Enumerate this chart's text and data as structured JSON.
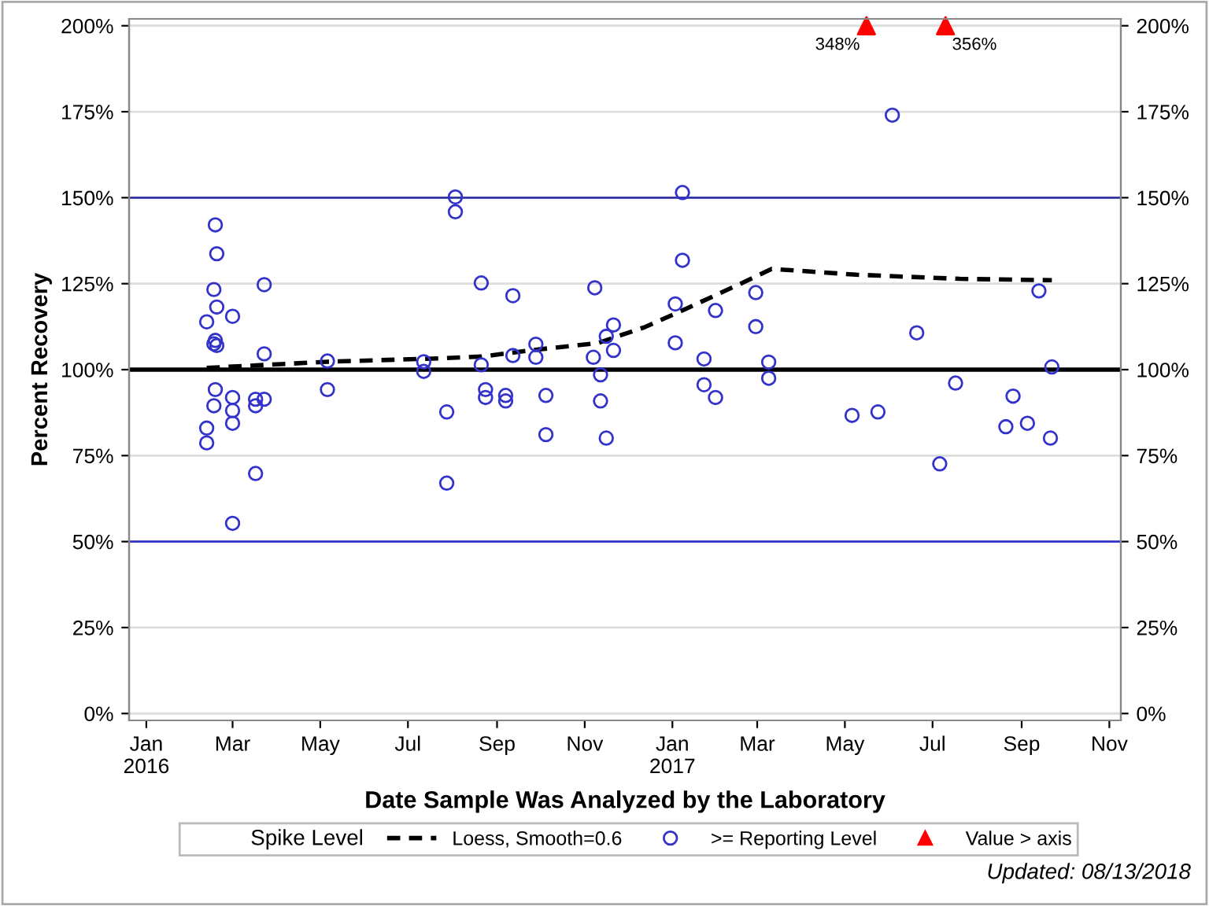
{
  "chart_data": {
    "type": "scatter",
    "xlabel": "Date Sample Was Analyzed by the Laboratory",
    "ylabel": "Percent Recovery",
    "legend_title": "Spike Level",
    "legend": "bottom",
    "grid": "y",
    "xlim": [
      "2015-12-20",
      "2017-11-09"
    ],
    "xticks": [
      {
        "value": "2016-01-01",
        "label": "Jan\n2016"
      },
      {
        "value": "2016-03-01",
        "label": "Mar"
      },
      {
        "value": "2016-05-01",
        "label": "May"
      },
      {
        "value": "2016-07-01",
        "label": "Jul"
      },
      {
        "value": "2016-09-01",
        "label": "Sep"
      },
      {
        "value": "2016-11-01",
        "label": "Nov"
      },
      {
        "value": "2017-01-01",
        "label": "Jan\n2017"
      },
      {
        "value": "2017-03-01",
        "label": "Mar"
      },
      {
        "value": "2017-05-01",
        "label": "May"
      },
      {
        "value": "2017-07-01",
        "label": "Jul"
      },
      {
        "value": "2017-09-01",
        "label": "Sep"
      },
      {
        "value": "2017-11-01",
        "label": "Nov"
      }
    ],
    "ylim": [
      -2,
      202
    ],
    "yticks": [
      {
        "value": 0,
        "label": "0%"
      },
      {
        "value": 25,
        "label": "25%"
      },
      {
        "value": 50,
        "label": "50%"
      },
      {
        "value": 75,
        "label": "75%"
      },
      {
        "value": 100,
        "label": "100%"
      },
      {
        "value": 125,
        "label": "125%"
      },
      {
        "value": 150,
        "label": "150%"
      },
      {
        "value": 175,
        "label": "175%"
      },
      {
        "value": 200,
        "label": "200%"
      }
    ],
    "y2lim": [
      -2,
      202
    ],
    "y2ticks": [
      {
        "value": 0,
        "label": "0%"
      },
      {
        "value": 25,
        "label": "25%"
      },
      {
        "value": 50,
        "label": "50%"
      },
      {
        "value": 75,
        "label": "75%"
      },
      {
        "value": 100,
        "label": "100%"
      },
      {
        "value": 125,
        "label": "125%"
      },
      {
        "value": 150,
        "label": "150%"
      },
      {
        "value": 175,
        "label": "175%"
      },
      {
        "value": 200,
        "label": "200%"
      }
    ],
    "ref_lines": [
      {
        "axis": "y",
        "value": 150,
        "color": "#3333aa",
        "line_style": "solid"
      },
      {
        "axis": "y",
        "value": 100,
        "color": "#000000",
        "line_style": "solid"
      },
      {
        "axis": "y",
        "value": 50,
        "color": "#3333cc",
        "line_style": "solid"
      }
    ],
    "series": [
      {
        "name": "Loess, Smooth=0.6",
        "type": "line",
        "color": "#000000",
        "marker": "none",
        "line_style": "dashed",
        "x": [
          "2016-02-12",
          "2016-05-06",
          "2016-07-24",
          "2016-08-21",
          "2016-09-28",
          "2016-11-10",
          "2016-12-13",
          "2017-01-11",
          "2017-02-17",
          "2017-03-11",
          "2017-05-09",
          "2017-07-20",
          "2017-09-22"
        ],
        "values": [
          100.5,
          102.3,
          103.3,
          103.8,
          105.8,
          107.7,
          112.4,
          117.8,
          124.9,
          129.3,
          127.6,
          126.4,
          126
        ]
      },
      {
        "name": ">= Reporting Level",
        "color": "#3333cc",
        "marker": "circle",
        "x": [
          "2016-02-18",
          "2016-02-19",
          "2016-02-17",
          "2016-02-19",
          "2016-02-12",
          "2016-03-01",
          "2016-03-23",
          "2016-02-18",
          "2016-02-17",
          "2016-02-19",
          "2016-03-23",
          "2016-05-06",
          "2016-07-12",
          "2016-07-12",
          "2016-02-18",
          "2016-02-17",
          "2016-03-01",
          "2016-03-01",
          "2016-03-01",
          "2016-02-12",
          "2016-02-12",
          "2016-03-17",
          "2016-03-17",
          "2016-03-23",
          "2016-05-06",
          "2016-03-17",
          "2016-03-01",
          "2016-08-03",
          "2016-08-03",
          "2016-07-28",
          "2016-07-28",
          "2016-08-21",
          "2016-08-21",
          "2016-08-24",
          "2016-08-24",
          "2016-09-07",
          "2016-09-07",
          "2016-09-12",
          "2016-09-12",
          "2016-09-28",
          "2016-09-28",
          "2016-10-05",
          "2016-10-05",
          "2016-11-08",
          "2016-11-07",
          "2016-11-12",
          "2016-11-12",
          "2016-11-16",
          "2016-11-21",
          "2016-11-21",
          "2016-11-16",
          "2017-01-08",
          "2017-01-08",
          "2017-01-03",
          "2017-01-03",
          "2017-01-23",
          "2017-01-23",
          "2017-01-31",
          "2017-01-31",
          "2017-02-28",
          "2017-02-28",
          "2017-03-09",
          "2017-03-09",
          "2017-05-06",
          "2017-05-24",
          "2017-06-03",
          "2017-06-20",
          "2017-07-06",
          "2017-07-17",
          "2017-08-21",
          "2017-08-26",
          "2017-09-05",
          "2017-09-13",
          "2017-09-22",
          "2017-09-21"
        ],
        "values": [
          142.1,
          133.7,
          123.3,
          118.2,
          113.9,
          115.5,
          124.7,
          108.5,
          107.5,
          107,
          104.6,
          102.5,
          102.3,
          99.5,
          94.2,
          89.5,
          91.9,
          88.1,
          84.4,
          83,
          78.7,
          91.4,
          89.5,
          91.4,
          94.2,
          69.8,
          55.3,
          150.2,
          145.9,
          87.7,
          67,
          125.2,
          101.4,
          94.2,
          91.9,
          92.5,
          90.9,
          121.5,
          104.1,
          107.4,
          103.6,
          92.5,
          81.1,
          123.8,
          103.6,
          98.5,
          90.9,
          109.7,
          113,
          105.6,
          80.1,
          151.5,
          131.8,
          119.1,
          107.8,
          103.1,
          95.6,
          117.2,
          91.9,
          122.4,
          112.5,
          102.2,
          97.5,
          86.7,
          87.7,
          174,
          110.7,
          72.6,
          96.1,
          83.4,
          92.3,
          84.4,
          122.9,
          100.8,
          80.1
        ]
      },
      {
        "name": "Value > axis",
        "color": "#ff0000",
        "marker": "triangle",
        "x": [
          "2017-05-16",
          "2017-07-10"
        ],
        "values": [
          200,
          200
        ]
      }
    ],
    "annotations": [
      {
        "text": "348%",
        "x": "2017-05-16",
        "y": 200
      },
      {
        "text": "356%",
        "x": "2017-07-10",
        "y": 200
      },
      "Updated: 08/13/2018"
    ]
  }
}
